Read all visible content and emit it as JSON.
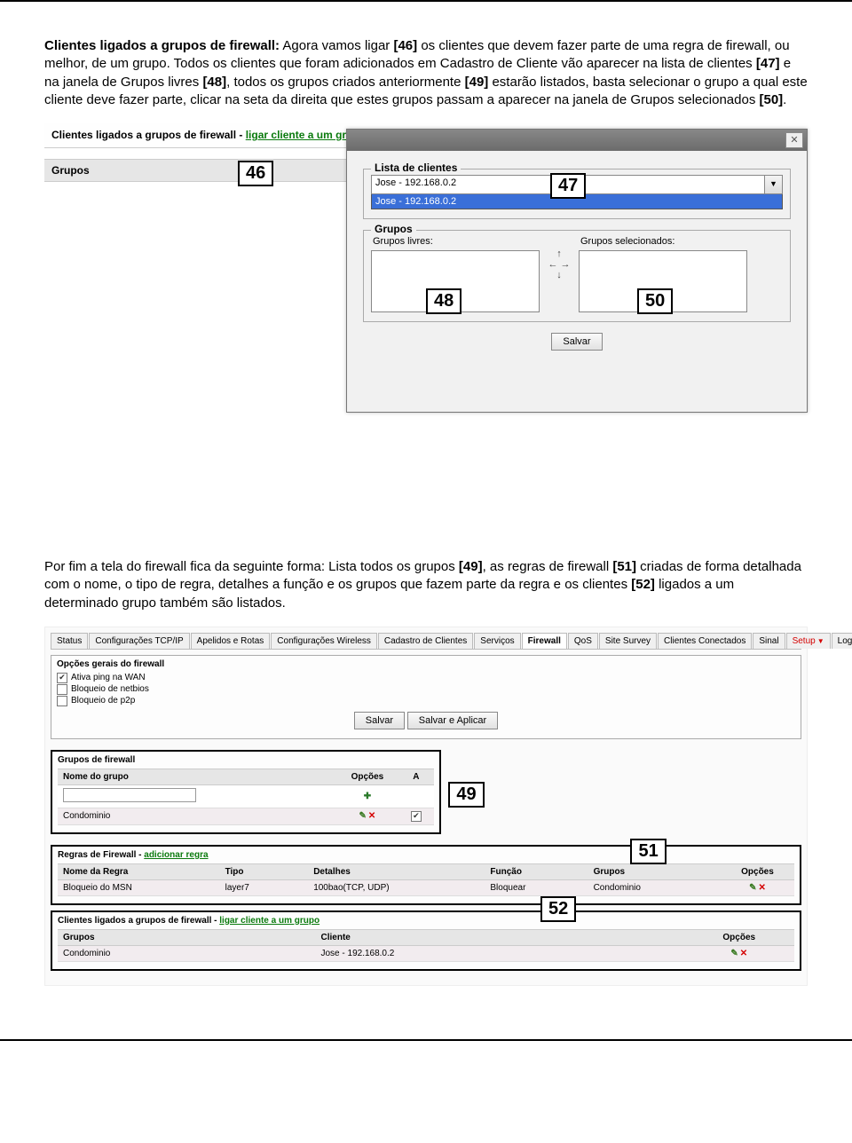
{
  "para1": {
    "bold_lead": "Clientes ligados a grupos de firewall:",
    "t1": " Agora vamos ligar ",
    "b46": "[46]",
    "t2": " os clientes que devem fazer parte de uma regra de firewall, ou melhor, de um grupo. Todos os clientes que foram adicionados em Cadastro de Cliente vão aparecer na lista de clientes ",
    "b47": "[47]",
    "t3": " e na janela de Grupos livres ",
    "b48": "[48]",
    "t4": ", todos os grupos criados anteriormente ",
    "b49": "[49]",
    "t5": " estarão listados, basta selecionar o grupo a qual este cliente deve fazer parte, clicar na seta da direita que estes grupos passam a aparecer na janela de Grupos selecionados ",
    "b50": "[50]",
    "t6": "."
  },
  "shot1": {
    "header_prefix": "Clientes ligados a grupos de firewall - ",
    "header_link": "ligar cliente a um grupo",
    "grupos_label": "Grupos",
    "modal": {
      "close": "✕",
      "lista_legend": "Lista de clientes",
      "combo_value": "Jose - 192.168.0.2",
      "combo_drop": "Jose - 192.168.0.2",
      "grupos_legend": "Grupos",
      "livres_label": "Grupos livres:",
      "selec_label": "Grupos selecionados:",
      "arrow_up": "↑",
      "arrow_lr": "← →",
      "arrow_dn": "↓",
      "save": "Salvar"
    },
    "callouts": {
      "c46": "46",
      "c47": "47",
      "c48": "48",
      "c50": "50"
    }
  },
  "para2": {
    "t1": "Por fim a tela do firewall fica da seguinte forma: Lista todos os grupos ",
    "b49": "[49]",
    "t2": ", as regras de firewall ",
    "b51": "[51]",
    "t3": " criadas de forma detalhada com o nome, o tipo de regra, detalhes a função e os grupos que fazem parte da regra e os clientes ",
    "b52": "[52]",
    "t4": " ligados a um determinado grupo também são listados."
  },
  "shot2": {
    "tabs": [
      "Status",
      "Configurações TCP/IP",
      "Apelidos e Rotas",
      "Configurações Wireless",
      "Cadastro de Clientes",
      "Serviços",
      "Firewall",
      "QoS",
      "Site Survey",
      "Clientes Conectados",
      "Sinal",
      "Setup",
      "Logout"
    ],
    "active_tab": "Firewall",
    "opts_title": "Opções gerais do firewall",
    "opt1": "Ativa ping na WAN",
    "opt2": "Bloqueio de netbios",
    "opt3": "Bloqueio de p2p",
    "btn_salvar": "Salvar",
    "btn_salvar_aplicar": "Salvar e Aplicar",
    "grupos_panel": {
      "title": "Grupos de firewall",
      "col_nome": "Nome do grupo",
      "col_opc": "Opções",
      "col_a": "A",
      "row_condo": "Condominio",
      "add_icon": "✚",
      "edit_icon": "✎",
      "del_icon": "✕",
      "chk_on": "✔"
    },
    "regras_panel": {
      "title_prefix": "Regras de Firewall - ",
      "title_link": "adicionar regra",
      "col_nome": "Nome da Regra",
      "col_tipo": "Tipo",
      "col_det": "Detalhes",
      "col_func": "Função",
      "col_grupos": "Grupos",
      "col_opc": "Opções",
      "row": {
        "nome": "Bloqueio do MSN",
        "tipo": "layer7",
        "det": "100bao(TCP, UDP)",
        "func": "Bloquear",
        "grupos": "Condominio"
      }
    },
    "clientes_panel": {
      "title_prefix": "Clientes ligados a grupos de firewall - ",
      "title_link": "ligar cliente a um grupo",
      "col_grupos": "Grupos",
      "col_cliente": "Cliente",
      "col_opc": "Opções",
      "row": {
        "grupo": "Condominio",
        "cliente": "Jose - 192.168.0.2"
      }
    },
    "callouts": {
      "c49": "49",
      "c51": "51",
      "c52": "52"
    }
  }
}
